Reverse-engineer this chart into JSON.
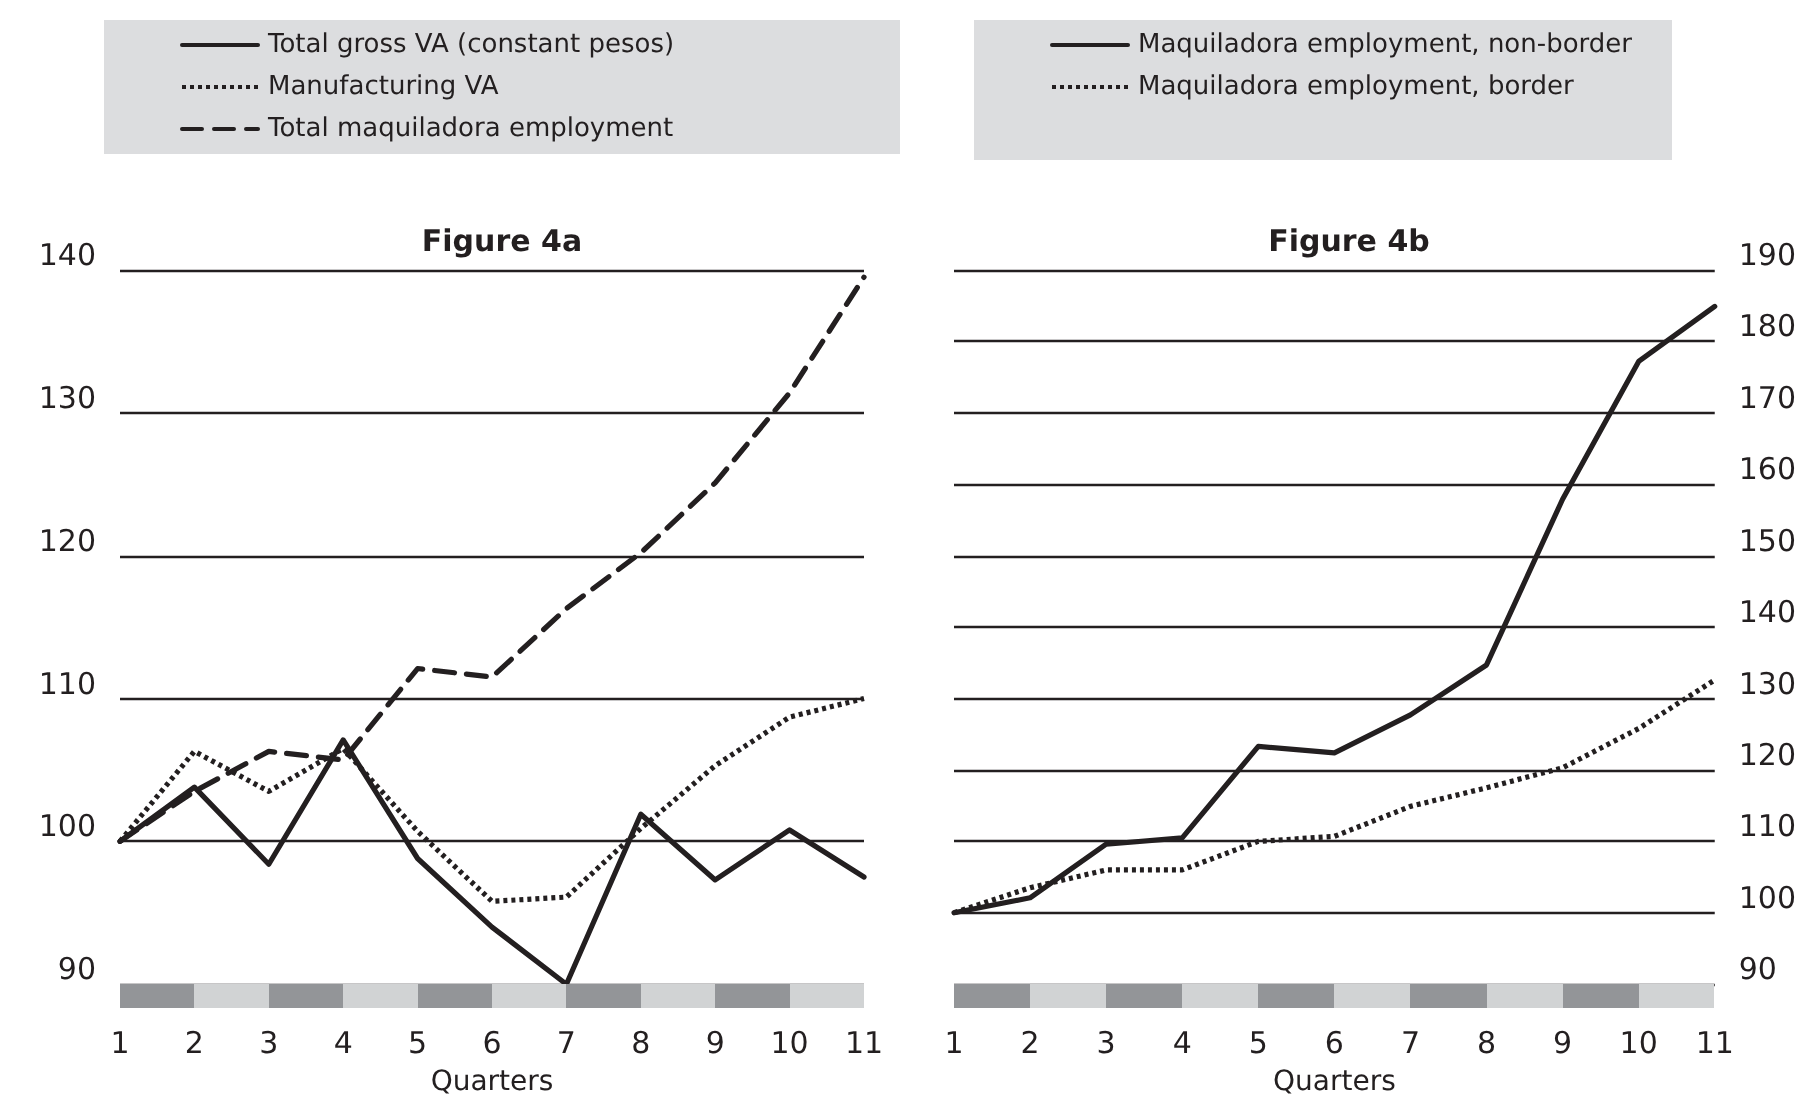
{
  "chart_data": [
    {
      "type": "line",
      "title": "Figure 4a",
      "xlabel": "Quarters",
      "x": [
        1,
        2,
        3,
        4,
        5,
        6,
        7,
        8,
        9,
        10,
        11
      ],
      "xlim": [
        1,
        11
      ],
      "xticks": [
        1,
        2,
        3,
        4,
        5,
        6,
        7,
        8,
        9,
        10,
        11
      ],
      "ylim": [
        90,
        140
      ],
      "yticks": [
        90,
        100,
        110,
        120,
        130,
        140
      ],
      "grid": "y",
      "legend": "top",
      "marker": "none",
      "series": [
        {
          "name": "Total gross VA (constant pesos)",
          "color": "#231f20",
          "line_style": "solid",
          "values": [
            100,
            103.8,
            98.4,
            107.1,
            98.8,
            94.0,
            90.0,
            101.9,
            97.3,
            100.8,
            97.5
          ]
        },
        {
          "name": "Manufacturing VA",
          "color": "#231f20",
          "line_style": "dotted",
          "values": [
            100,
            106.3,
            103.5,
            106.5,
            100.7,
            95.8,
            96.1,
            100.9,
            105.3,
            108.7,
            110.0
          ]
        },
        {
          "name": "Total maquiladora employment",
          "color": "#231f20",
          "line_style": "dashed",
          "values": [
            100,
            103.5,
            106.3,
            105.7,
            112.1,
            111.5,
            116.3,
            120.2,
            125.1,
            131.4,
            139.5
          ]
        }
      ]
    },
    {
      "type": "line",
      "title": "Figure 4b",
      "xlabel": "Quarters",
      "x": [
        1,
        2,
        3,
        4,
        5,
        6,
        7,
        8,
        9,
        10,
        11
      ],
      "xlim": [
        1,
        11
      ],
      "xticks": [
        1,
        2,
        3,
        4,
        5,
        6,
        7,
        8,
        9,
        10,
        11
      ],
      "ylim": [
        90,
        190
      ],
      "yticks": [
        90,
        100,
        110,
        120,
        130,
        140,
        150,
        160,
        170,
        180,
        190
      ],
      "grid": "y",
      "legend": "top",
      "marker": "none",
      "series": [
        {
          "name": "Maquiladora employment, non-border",
          "color": "#231f20",
          "line_style": "solid",
          "values": [
            100,
            102.1,
            109.6,
            110.5,
            123.3,
            122.4,
            127.7,
            134.7,
            157.9,
            177.2,
            184.9
          ]
        },
        {
          "name": "Maquiladora employment, border",
          "color": "#231f20",
          "line_style": "dotted",
          "values": [
            100,
            103.5,
            106.0,
            106.0,
            110.0,
            110.7,
            114.9,
            117.5,
            120.3,
            125.8,
            132.6
          ]
        }
      ]
    }
  ]
}
